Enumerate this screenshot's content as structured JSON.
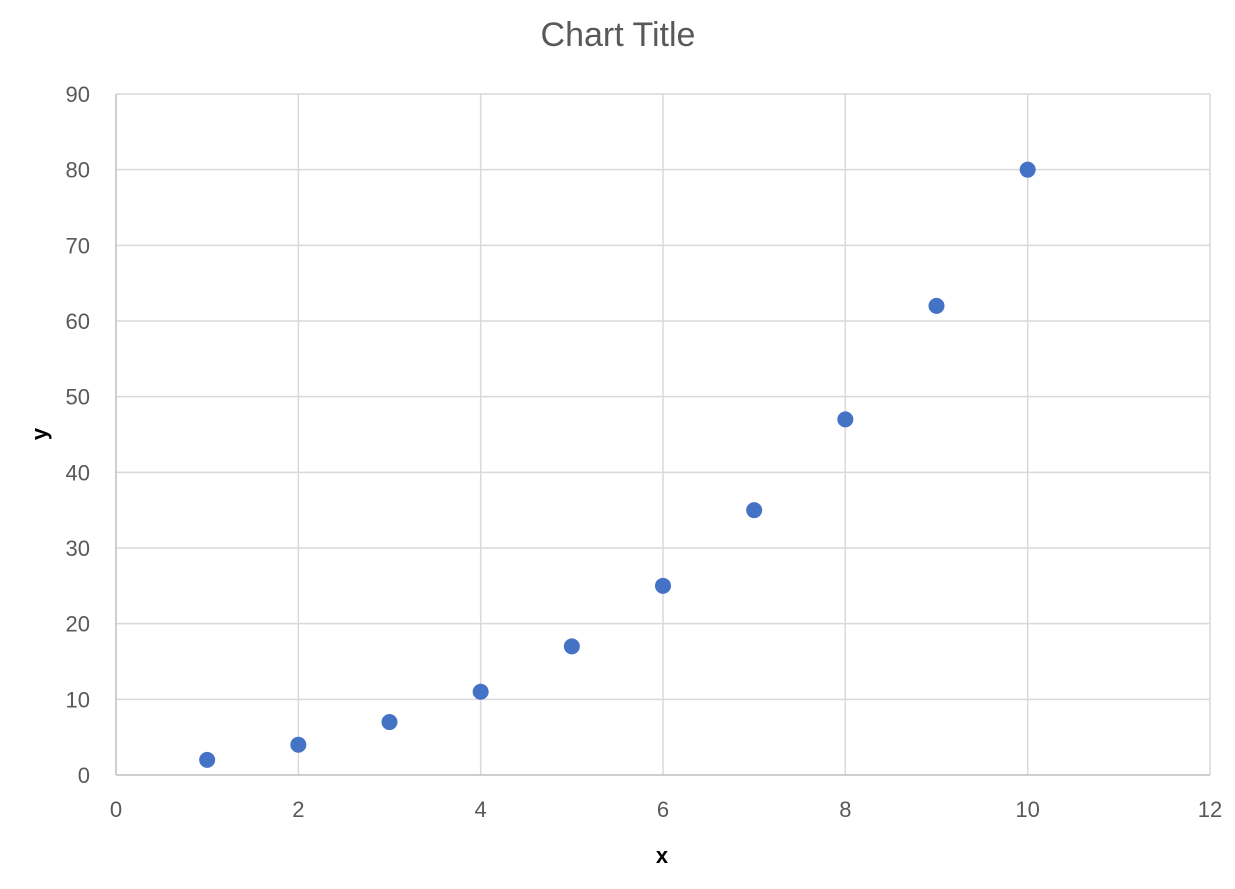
{
  "chart_data": {
    "type": "scatter",
    "title": "Chart Title",
    "xlabel": "x",
    "ylabel": "y",
    "xlim": [
      0,
      12
    ],
    "ylim": [
      0,
      90
    ],
    "x_ticks": [
      0,
      2,
      4,
      6,
      8,
      10,
      12
    ],
    "y_ticks": [
      0,
      10,
      20,
      30,
      40,
      50,
      60,
      70,
      80,
      90
    ],
    "grid": true,
    "legend": "none",
    "marker_color": "#4472c4",
    "series": [
      {
        "x": [
          1,
          2,
          3,
          4,
          5,
          6,
          7,
          8,
          9,
          10
        ],
        "y": [
          2,
          4,
          7,
          11,
          17,
          25,
          35,
          47,
          62,
          80
        ]
      }
    ]
  }
}
